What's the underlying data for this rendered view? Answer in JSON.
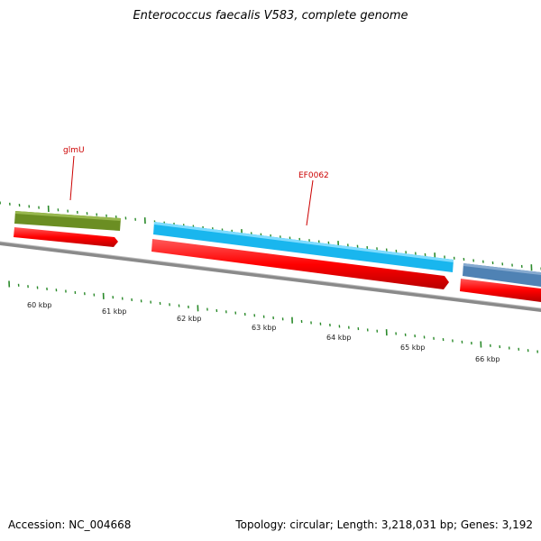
{
  "title": "Enterococcus faecalis V583, complete genome",
  "footer": {
    "accession": "Accession: NC_004668",
    "summary": "Topology: circular; Length: 3,218,031 bp; Genes: 3,192"
  },
  "axis": {
    "ticks": [
      "60 kbp",
      "61 kbp",
      "62 kbp",
      "63 kbp",
      "64 kbp",
      "65 kbp",
      "66 kbp"
    ]
  },
  "genes": [
    {
      "name": "glmU",
      "color": "#6b8e23",
      "strand": "forward"
    },
    {
      "name": "EF0062",
      "color": "#19b6ee",
      "strand": "forward"
    },
    {
      "name": "",
      "color": "#4f82b4",
      "strand": "forward"
    }
  ],
  "cds_color": "#ff0000",
  "backbone_color": "#888888",
  "tick_color": "#2a8a2a"
}
